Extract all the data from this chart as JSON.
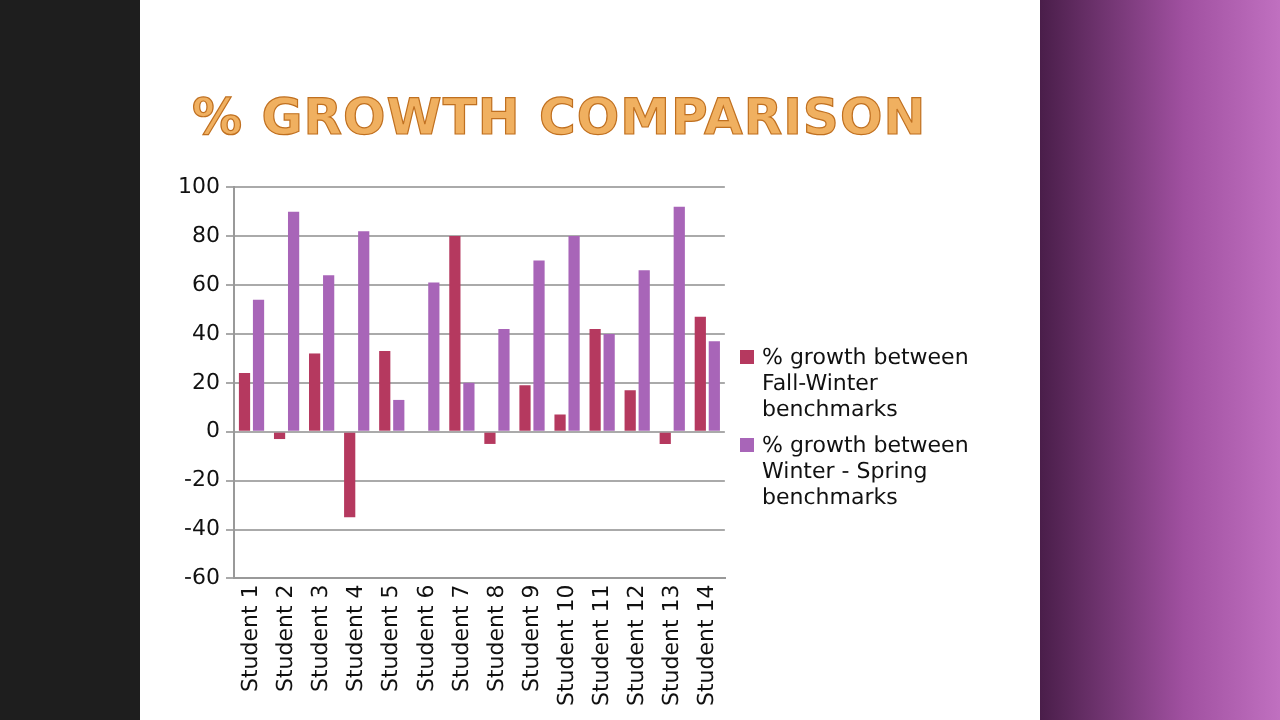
{
  "chart_data": {
    "type": "bar",
    "title": "% GROWTH COMPARISON",
    "categories": [
      "Student 1",
      "Student 2",
      "Student 3",
      "Student 4",
      "Student 5",
      "Student 6",
      "Student 7",
      "Student 8",
      "Student 9",
      "Student 10",
      "Student 11",
      "Student 12",
      "Student 13",
      "Student 14"
    ],
    "series": [
      {
        "name": "% growth between Fall-Winter benchmarks",
        "color": "#b5395f",
        "values": [
          24,
          -3,
          32,
          -35,
          33,
          0,
          80,
          -5,
          19,
          7,
          42,
          17,
          -5,
          47
        ]
      },
      {
        "name": "% growth between Winter - Spring benchmarks",
        "color": "#a865b8",
        "values": [
          54,
          90,
          64,
          82,
          13,
          61,
          20,
          42,
          70,
          80,
          40,
          66,
          92,
          37
        ]
      }
    ],
    "ylim": [
      -60,
      100
    ],
    "yticks": [
      -60,
      -40,
      -20,
      0,
      20,
      40,
      60,
      80,
      100
    ],
    "grid": "y",
    "legend": "right"
  }
}
